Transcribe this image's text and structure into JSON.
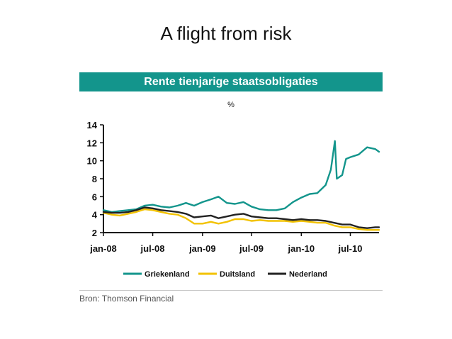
{
  "slide": {
    "title": "A flight from risk"
  },
  "source": "Bron: Thomson Financial",
  "chart_data": {
    "type": "line",
    "title": "Rente tienjarige staatsobligaties",
    "unit": "%",
    "xlabel": "",
    "ylabel": "",
    "xlim": [
      "2008-01-01",
      "2010-10-15"
    ],
    "ylim": [
      2,
      14
    ],
    "yticks": [
      2,
      4,
      6,
      8,
      10,
      12,
      14
    ],
    "xticks": [
      {
        "date": "2008-01-01",
        "label": "jan-08"
      },
      {
        "date": "2008-07-01",
        "label": "jul-08"
      },
      {
        "date": "2009-01-01",
        "label": "jan-09"
      },
      {
        "date": "2009-07-01",
        "label": "jul-09"
      },
      {
        "date": "2010-01-01",
        "label": "jan-10"
      },
      {
        "date": "2010-07-01",
        "label": "jul-10"
      }
    ],
    "grid": false,
    "legend": "bottom",
    "series": [
      {
        "name": "Griekenland",
        "color": "#13958c",
        "points": [
          [
            "2008-01-01",
            4.5
          ],
          [
            "2008-02-01",
            4.3
          ],
          [
            "2008-03-01",
            4.4
          ],
          [
            "2008-04-01",
            4.5
          ],
          [
            "2008-05-01",
            4.6
          ],
          [
            "2008-06-01",
            5.0
          ],
          [
            "2008-07-01",
            5.1
          ],
          [
            "2008-08-01",
            4.9
          ],
          [
            "2008-09-01",
            4.8
          ],
          [
            "2008-10-01",
            5.0
          ],
          [
            "2008-11-01",
            5.3
          ],
          [
            "2008-12-01",
            5.0
          ],
          [
            "2009-01-01",
            5.4
          ],
          [
            "2009-02-01",
            5.7
          ],
          [
            "2009-03-01",
            6.0
          ],
          [
            "2009-04-01",
            5.3
          ],
          [
            "2009-05-01",
            5.2
          ],
          [
            "2009-06-01",
            5.4
          ],
          [
            "2009-07-01",
            4.9
          ],
          [
            "2009-08-01",
            4.6
          ],
          [
            "2009-09-01",
            4.5
          ],
          [
            "2009-10-01",
            4.5
          ],
          [
            "2009-11-01",
            4.7
          ],
          [
            "2009-12-01",
            5.4
          ],
          [
            "2010-01-01",
            5.9
          ],
          [
            "2010-02-01",
            6.3
          ],
          [
            "2010-03-01",
            6.4
          ],
          [
            "2010-04-01",
            7.3
          ],
          [
            "2010-04-20",
            9.0
          ],
          [
            "2010-05-05",
            12.2
          ],
          [
            "2010-05-12",
            8.0
          ],
          [
            "2010-06-01",
            8.4
          ],
          [
            "2010-06-15",
            10.2
          ],
          [
            "2010-07-01",
            10.4
          ],
          [
            "2010-08-01",
            10.7
          ],
          [
            "2010-09-01",
            11.5
          ],
          [
            "2010-10-01",
            11.3
          ],
          [
            "2010-10-15",
            11.0
          ]
        ]
      },
      {
        "name": "Duitsland",
        "color": "#f2c200",
        "points": [
          [
            "2008-01-01",
            4.2
          ],
          [
            "2008-02-01",
            4.0
          ],
          [
            "2008-03-01",
            3.9
          ],
          [
            "2008-04-01",
            4.1
          ],
          [
            "2008-05-01",
            4.3
          ],
          [
            "2008-06-01",
            4.6
          ],
          [
            "2008-07-01",
            4.5
          ],
          [
            "2008-08-01",
            4.3
          ],
          [
            "2008-09-01",
            4.1
          ],
          [
            "2008-10-01",
            4.0
          ],
          [
            "2008-11-01",
            3.6
          ],
          [
            "2008-12-01",
            3.0
          ],
          [
            "2009-01-01",
            3.0
          ],
          [
            "2009-02-01",
            3.2
          ],
          [
            "2009-03-01",
            3.0
          ],
          [
            "2009-04-01",
            3.2
          ],
          [
            "2009-05-01",
            3.5
          ],
          [
            "2009-06-01",
            3.5
          ],
          [
            "2009-07-01",
            3.3
          ],
          [
            "2009-08-01",
            3.4
          ],
          [
            "2009-09-01",
            3.3
          ],
          [
            "2009-10-01",
            3.3
          ],
          [
            "2009-11-01",
            3.3
          ],
          [
            "2009-12-01",
            3.2
          ],
          [
            "2010-01-01",
            3.3
          ],
          [
            "2010-02-01",
            3.2
          ],
          [
            "2010-03-01",
            3.1
          ],
          [
            "2010-04-01",
            3.1
          ],
          [
            "2010-05-01",
            2.8
          ],
          [
            "2010-06-01",
            2.6
          ],
          [
            "2010-07-01",
            2.6
          ],
          [
            "2010-08-01",
            2.4
          ],
          [
            "2010-09-01",
            2.3
          ],
          [
            "2010-10-01",
            2.3
          ],
          [
            "2010-10-15",
            2.3
          ]
        ]
      },
      {
        "name": "Nederland",
        "color": "#222222",
        "points": [
          [
            "2008-01-01",
            4.3
          ],
          [
            "2008-02-01",
            4.2
          ],
          [
            "2008-03-01",
            4.2
          ],
          [
            "2008-04-01",
            4.3
          ],
          [
            "2008-05-01",
            4.5
          ],
          [
            "2008-06-01",
            4.8
          ],
          [
            "2008-07-01",
            4.7
          ],
          [
            "2008-08-01",
            4.5
          ],
          [
            "2008-09-01",
            4.4
          ],
          [
            "2008-10-01",
            4.3
          ],
          [
            "2008-11-01",
            4.1
          ],
          [
            "2008-12-01",
            3.7
          ],
          [
            "2009-01-01",
            3.8
          ],
          [
            "2009-02-01",
            3.9
          ],
          [
            "2009-03-01",
            3.6
          ],
          [
            "2009-04-01",
            3.8
          ],
          [
            "2009-05-01",
            4.0
          ],
          [
            "2009-06-01",
            4.1
          ],
          [
            "2009-07-01",
            3.8
          ],
          [
            "2009-08-01",
            3.7
          ],
          [
            "2009-09-01",
            3.6
          ],
          [
            "2009-10-01",
            3.6
          ],
          [
            "2009-11-01",
            3.5
          ],
          [
            "2009-12-01",
            3.4
          ],
          [
            "2010-01-01",
            3.5
          ],
          [
            "2010-02-01",
            3.4
          ],
          [
            "2010-03-01",
            3.4
          ],
          [
            "2010-04-01",
            3.3
          ],
          [
            "2010-05-01",
            3.1
          ],
          [
            "2010-06-01",
            2.9
          ],
          [
            "2010-07-01",
            2.9
          ],
          [
            "2010-08-01",
            2.6
          ],
          [
            "2010-09-01",
            2.5
          ],
          [
            "2010-10-01",
            2.6
          ],
          [
            "2010-10-15",
            2.6
          ]
        ]
      }
    ]
  }
}
